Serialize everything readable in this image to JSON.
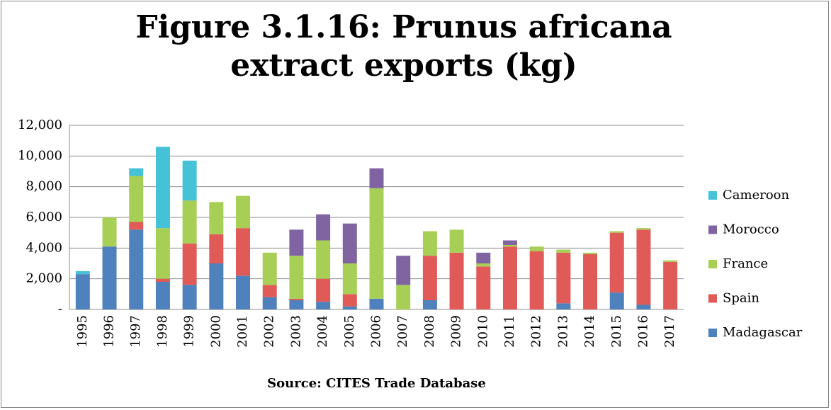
{
  "chart_data": {
    "type": "stacked_bar",
    "title": "Figure 3.1.16: Prunus africana extract exports (kg)",
    "x_label": "Source: CITES Trade Database",
    "categories": [
      "1995",
      "1996",
      "1997",
      "1998",
      "1999",
      "2000",
      "2001",
      "2002",
      "2003",
      "2004",
      "2005",
      "2006",
      "2007",
      "2008",
      "2009",
      "2010",
      "2011",
      "2012",
      "2013",
      "2014",
      "2015",
      "2016",
      "2017"
    ],
    "series": [
      {
        "name": "Madagascar",
        "color": "#4f81bd",
        "values": [
          2300,
          4100,
          5200,
          1800,
          1600,
          3000,
          2200,
          800,
          600,
          500,
          200,
          700,
          0,
          600,
          0,
          0,
          0,
          0,
          400,
          0,
          1100,
          300,
          0
        ]
      },
      {
        "name": "Spain",
        "color": "#e05a58",
        "values": [
          0,
          0,
          500,
          200,
          2700,
          1900,
          3100,
          800,
          100,
          1500,
          800,
          0,
          0,
          2900,
          3700,
          2800,
          4100,
          3800,
          3300,
          3600,
          3900,
          4900,
          3100
        ]
      },
      {
        "name": "France",
        "color": "#a8cf55",
        "values": [
          0,
          1900,
          3000,
          3300,
          2800,
          2100,
          2100,
          2100,
          2800,
          2500,
          2000,
          7200,
          1600,
          1600,
          1500,
          200,
          100,
          300,
          200,
          100,
          100,
          100,
          100
        ]
      },
      {
        "name": "Morocco",
        "color": "#8064a2",
        "values": [
          0,
          0,
          0,
          0,
          0,
          0,
          0,
          0,
          1700,
          1700,
          2600,
          1300,
          1900,
          0,
          0,
          700,
          300,
          0,
          0,
          0,
          0,
          0,
          0
        ]
      },
      {
        "name": "Cameroon",
        "color": "#45c1d8",
        "values": [
          200,
          0,
          500,
          5300,
          2600,
          0,
          0,
          0,
          0,
          0,
          0,
          0,
          0,
          0,
          0,
          0,
          0,
          0,
          0,
          0,
          0,
          0,
          0
        ]
      }
    ],
    "ylim": [
      0,
      12000
    ],
    "yticks": [
      {
        "value": 0,
        "label": "-"
      },
      {
        "value": 2000,
        "label": "2,000"
      },
      {
        "value": 4000,
        "label": "4,000"
      },
      {
        "value": 6000,
        "label": "6,000"
      },
      {
        "value": 8000,
        "label": "8,000"
      },
      {
        "value": 10000,
        "label": "10,000"
      },
      {
        "value": 12000,
        "label": "12,000"
      }
    ],
    "grid": true,
    "legend": "right"
  }
}
